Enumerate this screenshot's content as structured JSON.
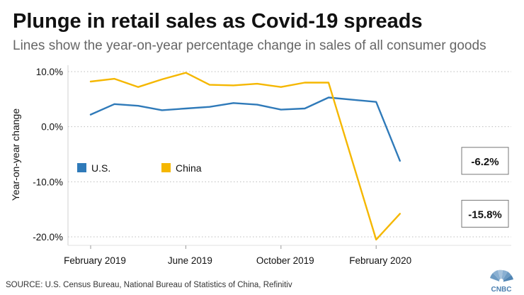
{
  "header": {
    "title": "Plunge in retail sales as Covid-19 spreads",
    "subtitle": "Lines show the year-on-year percentage change in sales of all consumer goods"
  },
  "footer": {
    "source": "SOURCE: U.S. Census Bureau, National Bureau of Statistics of China, Refinitiv",
    "brand": "CNBC"
  },
  "chart_data": {
    "type": "line",
    "ylabel": "Year-on-year change",
    "ylim": [
      -20,
      10
    ],
    "yticks": [
      10,
      0,
      -10,
      -20
    ],
    "yticklabels": [
      "10.0%",
      "0.0%",
      "-10.0%",
      "-20.0%"
    ],
    "xticks": [
      1,
      5,
      9,
      13
    ],
    "xticklabels": [
      "February 2019",
      "June 2019",
      "October 2019",
      "February 2020"
    ],
    "x": [
      1,
      2,
      3,
      4,
      5,
      6,
      7,
      8,
      9,
      10,
      11,
      12,
      13,
      14
    ],
    "series": [
      {
        "name": "U.S.",
        "color": "#2f7ab9",
        "x": [
          1,
          2,
          3,
          4,
          5,
          6,
          7,
          8,
          9,
          10,
          11,
          13,
          14
        ],
        "values": [
          2.2,
          4.1,
          3.8,
          3.0,
          3.3,
          3.6,
          4.3,
          4.0,
          3.1,
          3.3,
          5.3,
          4.5,
          -6.2
        ],
        "end_label": "-6.2%"
      },
      {
        "name": "China",
        "color": "#f5b700",
        "x": [
          1,
          2,
          3,
          4,
          5,
          6,
          7,
          8,
          9,
          10,
          11,
          13,
          14
        ],
        "values": [
          8.2,
          8.7,
          7.2,
          8.6,
          9.8,
          7.6,
          7.5,
          7.8,
          7.2,
          8.0,
          8.0,
          -20.5,
          -15.8
        ],
        "end_label": "-15.8%"
      }
    ],
    "legend": "left-middle"
  }
}
